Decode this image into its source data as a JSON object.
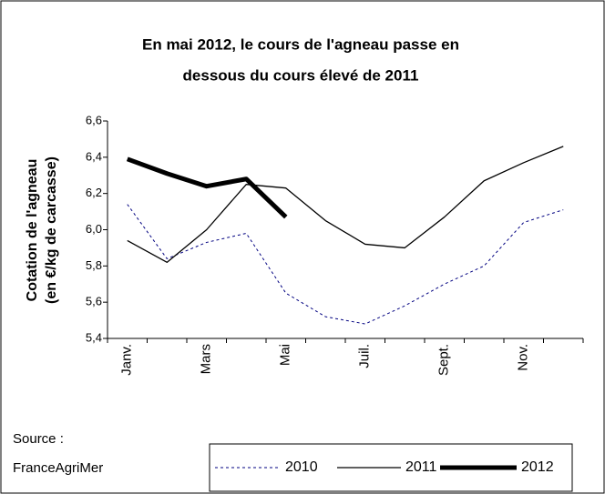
{
  "chart_data": {
    "type": "line",
    "title": [
      "En mai 2012, le cours de l'agneau passe en",
      "dessous du cours élevé de 2011"
    ],
    "y_label": [
      "Cotation de l'agneau",
      "(en €/kg de carcasse)"
    ],
    "source": [
      "Source :",
      "FranceAgriMer"
    ],
    "categories": [
      "Janv.",
      null,
      "Mars",
      null,
      "Mai",
      null,
      "Juil.",
      null,
      "Sept.",
      null,
      "Nov.",
      null
    ],
    "series": [
      {
        "name": "2010",
        "color": "#000080",
        "dash": true,
        "width": 1,
        "values": [
          6.14,
          5.84,
          5.93,
          5.98,
          5.65,
          5.52,
          5.48,
          5.58,
          5.7,
          5.8,
          6.04,
          6.11
        ]
      },
      {
        "name": "2011",
        "color": "#000000",
        "dash": false,
        "width": 1.3,
        "values": [
          5.94,
          5.82,
          6.0,
          6.25,
          6.23,
          6.05,
          5.92,
          5.9,
          6.07,
          6.27,
          6.37,
          6.46
        ]
      },
      {
        "name": "2012",
        "color": "#000000",
        "dash": false,
        "width": 5,
        "values": [
          6.39,
          6.31,
          6.24,
          6.28,
          6.07,
          null,
          null,
          null,
          null,
          null,
          null,
          null
        ]
      }
    ],
    "ylim": [
      5.4,
      6.6
    ],
    "yticks": [
      {
        "value": 5.4,
        "label": "5,4"
      },
      {
        "value": 5.6,
        "label": "5,6"
      },
      {
        "value": 5.8,
        "label": "5,8"
      },
      {
        "value": 6.0,
        "label": "6,0"
      },
      {
        "value": 6.2,
        "label": "6,2"
      },
      {
        "value": 6.4,
        "label": "6,4"
      },
      {
        "value": 6.6,
        "label": "6,6"
      }
    ],
    "grid": false
  }
}
